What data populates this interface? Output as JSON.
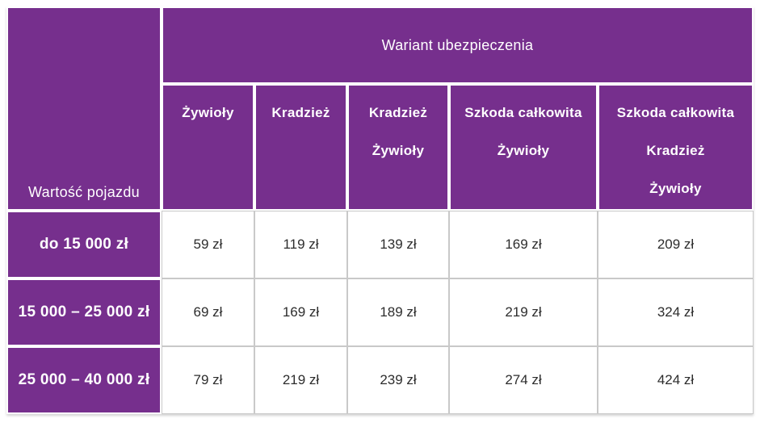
{
  "table": {
    "corner_header": "Wartość pojazdu",
    "span_header": "Wariant ubezpieczenia",
    "columns": [
      {
        "lines": [
          "Żywioły"
        ]
      },
      {
        "lines": [
          "Kradzież"
        ]
      },
      {
        "lines": [
          "Kradzież",
          "Żywioły"
        ]
      },
      {
        "lines": [
          "Szkoda całkowita",
          "Żywioły"
        ]
      },
      {
        "lines": [
          "Szkoda całkowita",
          "Kradzież",
          "Żywioły"
        ]
      }
    ],
    "rows": [
      {
        "label": "do 15 000 zł",
        "values": [
          "59 zł",
          "119 zł",
          "139 zł",
          "169 zł",
          "209 zł"
        ]
      },
      {
        "label": "15 000 – 25 000 zł",
        "values": [
          "69 zł",
          "169 zł",
          "189 zł",
          "219 zł",
          "324 zł"
        ]
      },
      {
        "label": "25 000 – 40 000 zł",
        "values": [
          "79 zł",
          "219 zł",
          "239 zł",
          "274 zł",
          "424 zł"
        ]
      }
    ]
  },
  "colors": {
    "brand_purple": "#762f8d",
    "grid_border": "#c9c9c9",
    "value_text": "#2d2d2d",
    "header_text": "#ffffff"
  }
}
